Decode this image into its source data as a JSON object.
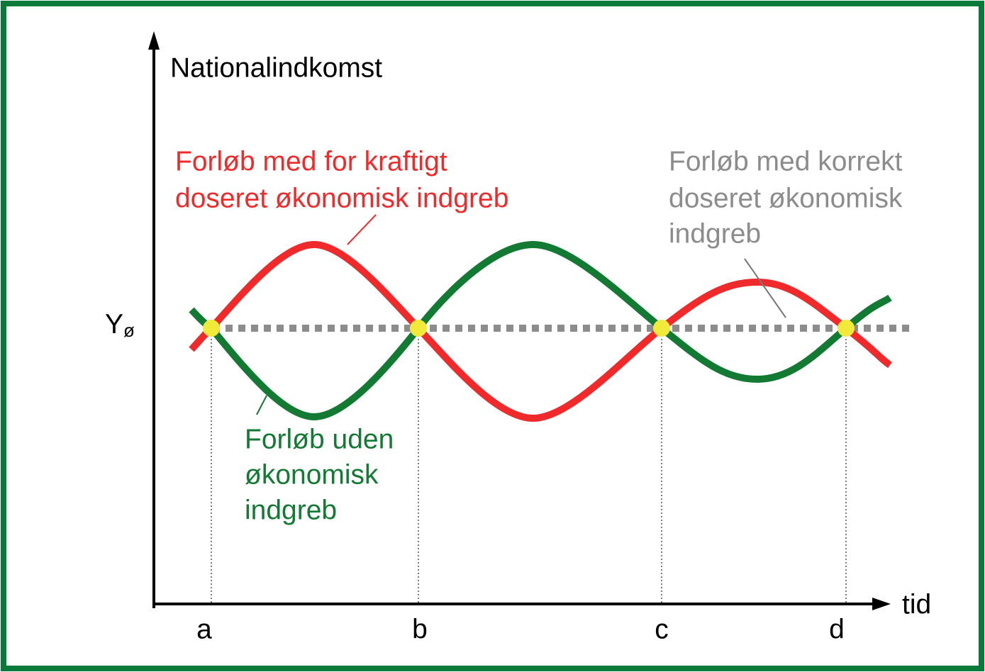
{
  "y_axis_label": "Nationalindkomst",
  "x_axis_label": "tid",
  "reference_level": {
    "main": "Y",
    "sub": "ø"
  },
  "time_points": [
    "a",
    "b",
    "c",
    "d"
  ],
  "annotations": {
    "too_strong": [
      "Forløb med for kraftigt",
      "doseret økonomisk indgreb"
    ],
    "correct": [
      "Forløb med korrekt",
      "doseret økonomisk",
      "indgreb"
    ],
    "none": [
      "Forløb uden",
      "økonomisk",
      "indgreb"
    ]
  }
}
